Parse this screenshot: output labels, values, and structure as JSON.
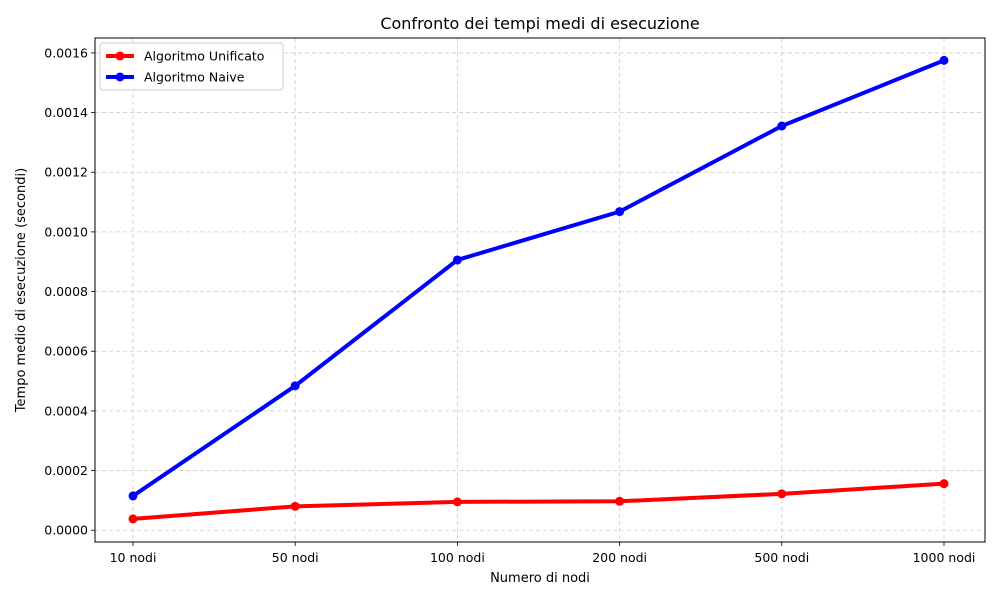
{
  "chart_data": {
    "type": "line",
    "title": "Confronto dei tempi medi di esecuzione",
    "xlabel": "Numero di nodi",
    "ylabel": "Tempo medio di esecuzione (secondi)",
    "categories": [
      "10 nodi",
      "50 nodi",
      "100 nodi",
      "200 nodi",
      "500 nodi",
      "1000 nodi"
    ],
    "yticks": [
      "0.0000",
      "0.0002",
      "0.0004",
      "0.0006",
      "0.0008",
      "0.0010",
      "0.0012",
      "0.0014",
      "0.0016"
    ],
    "ylim": [
      -3.95e-05,
      0.00165
    ],
    "grid": true,
    "legend_position": "top-left",
    "series": [
      {
        "name": "Algoritmo Unificato",
        "color": "#ff0000",
        "values": [
          3.8e-05,
          8e-05,
          9.5e-05,
          9.7e-05,
          0.000122,
          0.000156
        ]
      },
      {
        "name": "Algoritmo Naive",
        "color": "#0000ff",
        "values": [
          0.000115,
          0.000484,
          0.000906,
          0.001068,
          0.001355,
          0.001575
        ]
      }
    ]
  }
}
